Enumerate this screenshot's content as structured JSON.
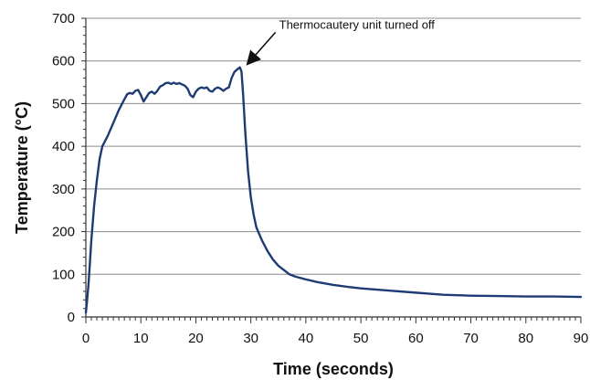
{
  "chart_data": {
    "type": "line",
    "title": "",
    "xlabel": "Time (seconds)",
    "ylabel": "Temperature (°C)",
    "xlim": [
      0,
      90
    ],
    "ylim": [
      0,
      700
    ],
    "x_ticks": [
      0,
      10,
      20,
      30,
      40,
      50,
      60,
      70,
      80,
      90
    ],
    "y_ticks": [
      0,
      100,
      200,
      300,
      400,
      500,
      600,
      700
    ],
    "x_tick_labels": [
      "0",
      "10",
      "20",
      "30",
      "40",
      "50",
      "60",
      "70",
      "80",
      "90"
    ],
    "y_tick_labels": [
      "0",
      "100",
      "200",
      "300",
      "400",
      "500",
      "600",
      "700"
    ],
    "grid": "horizontal",
    "legend": "none",
    "colors": {
      "line": "#1f3b73",
      "grid": "#8c8c8c",
      "axis": "#333333",
      "text": "#111111",
      "arrow": "#111111"
    },
    "annotations": [
      {
        "text": "Thermocautery unit turned off",
        "x": 28.5,
        "y": 590
      }
    ],
    "series": [
      {
        "values": [
          [
            0,
            10
          ],
          [
            0.2,
            35
          ],
          [
            0.5,
            80
          ],
          [
            1,
            180
          ],
          [
            1.5,
            260
          ],
          [
            2,
            320
          ],
          [
            2.5,
            370
          ],
          [
            3,
            400
          ],
          [
            4,
            425
          ],
          [
            5,
            455
          ],
          [
            6,
            485
          ],
          [
            6.8,
            505
          ],
          [
            7.5,
            522
          ],
          [
            8,
            525
          ],
          [
            8.5,
            523
          ],
          [
            9,
            530
          ],
          [
            9.5,
            532
          ],
          [
            10,
            520
          ],
          [
            10.5,
            505
          ],
          [
            11,
            515
          ],
          [
            11.5,
            525
          ],
          [
            12,
            528
          ],
          [
            12.5,
            523
          ],
          [
            13,
            530
          ],
          [
            13.5,
            540
          ],
          [
            14,
            543
          ],
          [
            14.5,
            548
          ],
          [
            15,
            549
          ],
          [
            15.5,
            546
          ],
          [
            16,
            549
          ],
          [
            16.5,
            546
          ],
          [
            17,
            548
          ],
          [
            17.5,
            545
          ],
          [
            18,
            542
          ],
          [
            18.5,
            535
          ],
          [
            19,
            520
          ],
          [
            19.5,
            515
          ],
          [
            20,
            528
          ],
          [
            20.5,
            535
          ],
          [
            21,
            538
          ],
          [
            21.5,
            536
          ],
          [
            22,
            538
          ],
          [
            22.5,
            530
          ],
          [
            23,
            528
          ],
          [
            23.5,
            535
          ],
          [
            24,
            538
          ],
          [
            24.5,
            535
          ],
          [
            25,
            530
          ],
          [
            25.5,
            535
          ],
          [
            26,
            538
          ],
          [
            26.5,
            560
          ],
          [
            27,
            574
          ],
          [
            27.5,
            580
          ],
          [
            28,
            585
          ],
          [
            28.3,
            575
          ],
          [
            28.6,
            520
          ],
          [
            29,
            430
          ],
          [
            29.5,
            340
          ],
          [
            30,
            280
          ],
          [
            30.5,
            240
          ],
          [
            31,
            210
          ],
          [
            32,
            180
          ],
          [
            33,
            155
          ],
          [
            34,
            135
          ],
          [
            35,
            120
          ],
          [
            36,
            110
          ],
          [
            37,
            100
          ],
          [
            38,
            95
          ],
          [
            40,
            88
          ],
          [
            42,
            82
          ],
          [
            45,
            75
          ],
          [
            48,
            70
          ],
          [
            50,
            67
          ],
          [
            55,
            62
          ],
          [
            60,
            57
          ],
          [
            62,
            55
          ],
          [
            65,
            52
          ],
          [
            70,
            50
          ],
          [
            75,
            49
          ],
          [
            80,
            48
          ],
          [
            85,
            48
          ],
          [
            90,
            47
          ]
        ]
      }
    ]
  }
}
